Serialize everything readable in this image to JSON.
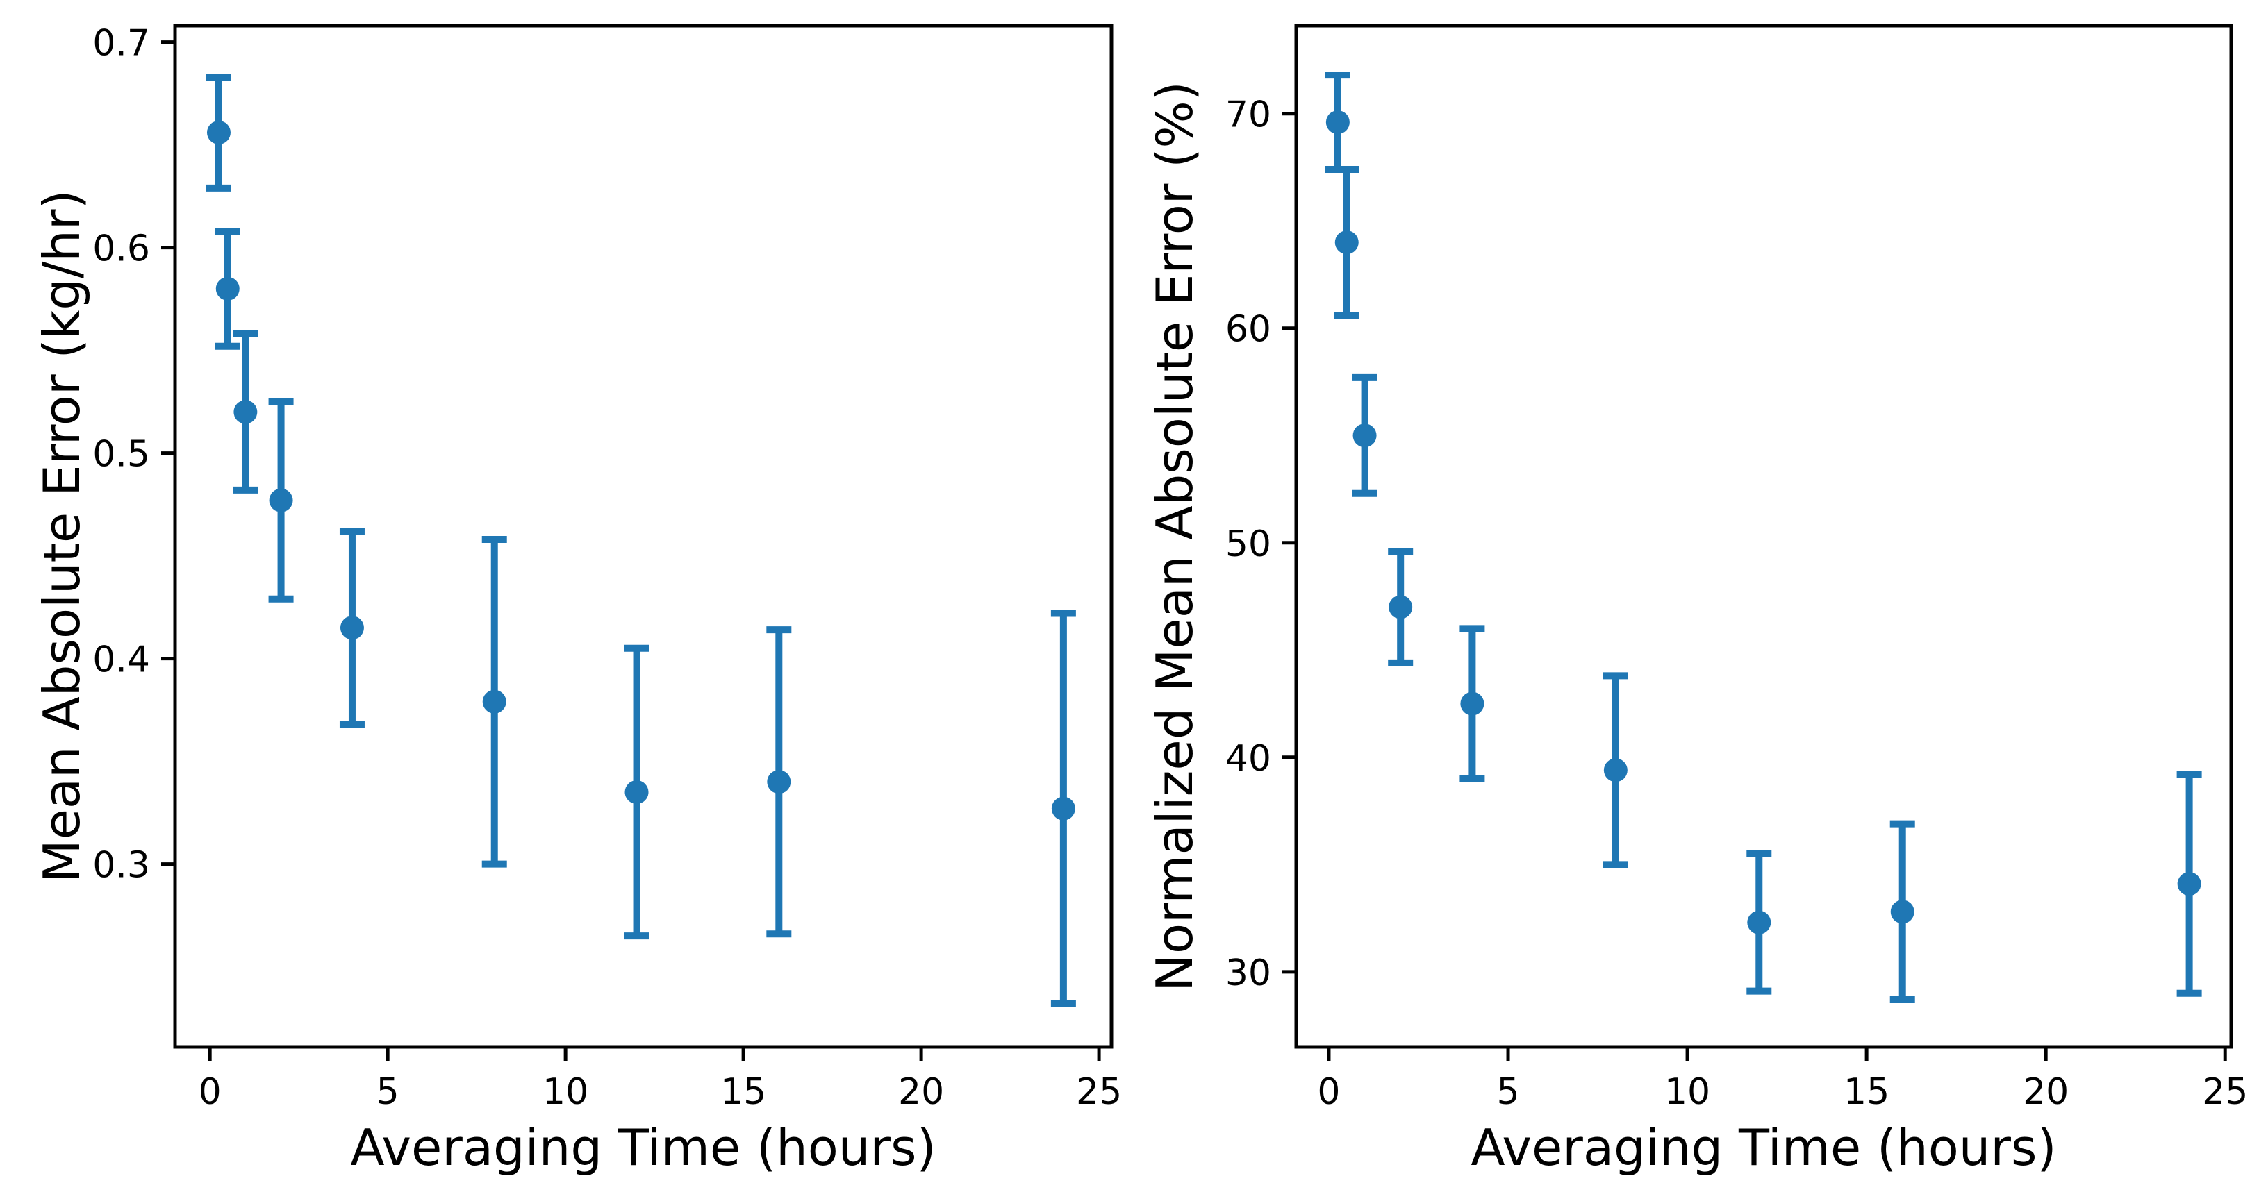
{
  "figure": {
    "background": "#ffffff",
    "n_subplots": 2
  },
  "chart_data": [
    {
      "type": "scatter",
      "subtype": "errorbar",
      "title": "",
      "xlabel": "Averaging Time (hours)",
      "ylabel": "Mean Absolute Error (kg/hr)",
      "marker": "circle",
      "color": "#1f77b4",
      "grid": false,
      "legend": null,
      "x": [
        0.25,
        0.5,
        1,
        2,
        4,
        8,
        12,
        16,
        24
      ],
      "y": [
        0.656,
        0.58,
        0.52,
        0.477,
        0.415,
        0.379,
        0.335,
        0.34,
        0.327
      ],
      "yerr": [
        0.027,
        0.028,
        0.038,
        0.048,
        0.047,
        0.079,
        0.07,
        0.074,
        0.095
      ],
      "xlim": [
        -0.98,
        25.35
      ],
      "ylim": [
        0.211,
        0.708
      ],
      "xticks": {
        "values": [
          0,
          5,
          10,
          15,
          20,
          25
        ],
        "labels": [
          "0",
          "5",
          "10",
          "15",
          "20",
          "25"
        ]
      },
      "yticks": {
        "values": [
          0.3,
          0.4,
          0.5,
          0.6,
          0.7
        ],
        "labels": [
          "0.3",
          "0.4",
          "0.5",
          "0.6",
          "0.7"
        ]
      }
    },
    {
      "type": "scatter",
      "subtype": "errorbar",
      "title": "",
      "xlabel": "Averaging Time (hours)",
      "ylabel": "Normalized Mean Absolute Error (%)",
      "marker": "circle",
      "color": "#1f77b4",
      "grid": false,
      "legend": null,
      "x": [
        0.25,
        0.5,
        1,
        2,
        4,
        8,
        12,
        16,
        24
      ],
      "y": [
        69.6,
        64.0,
        55.0,
        47.0,
        42.5,
        39.4,
        32.3,
        32.8,
        34.1
      ],
      "yerr": [
        2.2,
        3.4,
        2.7,
        2.6,
        3.5,
        4.4,
        3.2,
        4.1,
        5.1
      ],
      "xlim": [
        -0.91,
        25.17
      ],
      "ylim": [
        26.5,
        74.1
      ],
      "xticks": {
        "values": [
          0,
          5,
          10,
          15,
          20,
          25
        ],
        "labels": [
          "0",
          "5",
          "10",
          "15",
          "20",
          "25"
        ]
      },
      "yticks": {
        "values": [
          30,
          40,
          50,
          60,
          70
        ],
        "labels": [
          "30",
          "40",
          "50",
          "60",
          "70"
        ]
      }
    }
  ]
}
